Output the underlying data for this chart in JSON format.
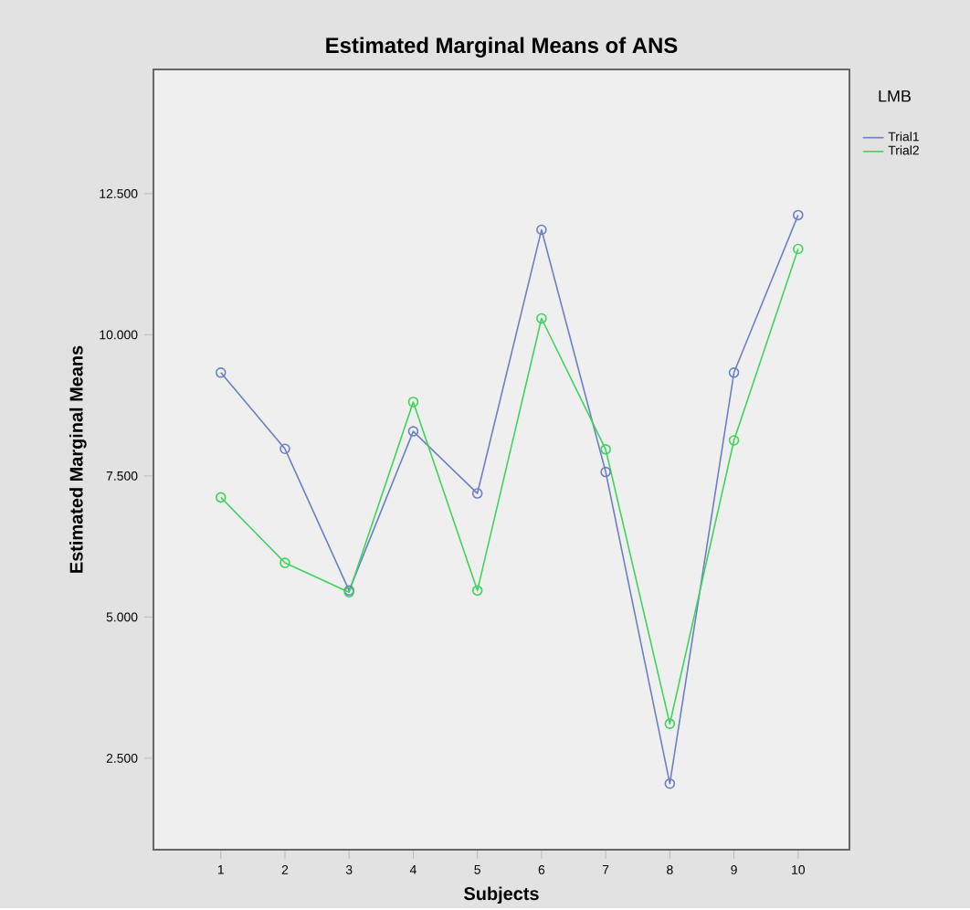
{
  "chart_data": {
    "type": "line",
    "title": "Estimated Marginal Means of ANS",
    "xlabel": "Subjects",
    "ylabel": "Estimated Marginal Means",
    "legend_title": "LMB",
    "categories": [
      "1",
      "2",
      "3",
      "4",
      "5",
      "6",
      "7",
      "8",
      "9",
      "10"
    ],
    "series": [
      {
        "name": "Trial1",
        "color": "#6b7fc4",
        "values": [
          9.33,
          7.98,
          5.47,
          8.29,
          7.19,
          11.86,
          7.57,
          2.05,
          9.33,
          12.12
        ]
      },
      {
        "name": "Trial2",
        "color": "#3ed35a",
        "values": [
          7.12,
          5.96,
          5.44,
          8.81,
          5.47,
          10.29,
          7.97,
          3.11,
          8.13,
          11.52
        ]
      }
    ],
    "ylim": [
      0.88,
      14.7
    ],
    "yticks": [
      {
        "value": 2.5,
        "label": "2.500"
      },
      {
        "value": 5,
        "label": "5.000"
      },
      {
        "value": 7.5,
        "label": "7.500"
      },
      {
        "value": 10,
        "label": "10.000"
      },
      {
        "value": 12.5,
        "label": "12.500"
      }
    ],
    "grid": false,
    "legend": "top right",
    "marker": "circle",
    "line_style": "solid"
  }
}
